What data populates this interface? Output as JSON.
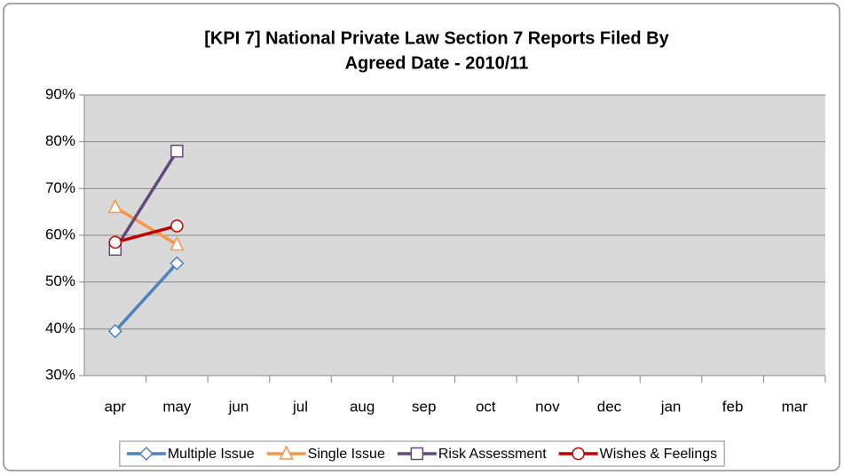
{
  "chart_data": {
    "type": "line",
    "title": "[KPI 7] National Private Law Section 7 Reports Filed By",
    "subtitle": "Agreed Date - 2010/11",
    "categories": [
      "apr",
      "may",
      "jun",
      "jul",
      "aug",
      "sep",
      "oct",
      "nov",
      "dec",
      "jan",
      "feb",
      "mar"
    ],
    "series": [
      {
        "name": "Multiple Issue",
        "color": "#4f81bd",
        "marker": "diamond",
        "values": [
          39.5,
          54,
          null,
          null,
          null,
          null,
          null,
          null,
          null,
          null,
          null,
          null
        ]
      },
      {
        "name": "Single Issue",
        "color": "#f79646",
        "marker": "triangle",
        "values": [
          66,
          58,
          null,
          null,
          null,
          null,
          null,
          null,
          null,
          null,
          null,
          null
        ]
      },
      {
        "name": "Risk Assessment",
        "color": "#604a7b",
        "marker": "square",
        "values": [
          57,
          78,
          null,
          null,
          null,
          null,
          null,
          null,
          null,
          null,
          null,
          null
        ]
      },
      {
        "name": "Wishes & Feelings",
        "color": "#c00000",
        "marker": "circle",
        "values": [
          58.5,
          62,
          null,
          null,
          null,
          null,
          null,
          null,
          null,
          null,
          null,
          null
        ]
      }
    ],
    "ylim": [
      30,
      90
    ],
    "yticks": [
      {
        "value": 30,
        "label": "30%"
      },
      {
        "value": 40,
        "label": "40%"
      },
      {
        "value": 50,
        "label": "50%"
      },
      {
        "value": 60,
        "label": "60%"
      },
      {
        "value": 70,
        "label": "70%"
      },
      {
        "value": 80,
        "label": "80%"
      },
      {
        "value": 90,
        "label": "90%"
      }
    ],
    "grid": true,
    "legend": "bottom"
  }
}
